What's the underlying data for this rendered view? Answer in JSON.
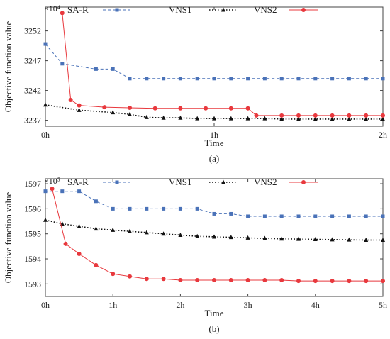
{
  "chart_data": [
    {
      "type": "line",
      "caption": "(a)",
      "xlabel": "Time",
      "ylabel": "Objective function value",
      "scale_label": "×10⁴",
      "xlim": [
        0,
        2
      ],
      "ylim": [
        3236,
        3256
      ],
      "x_ticks": [
        0,
        1,
        2
      ],
      "x_tick_labels": [
        "0h",
        "1h",
        "2h"
      ],
      "y_ticks": [
        3237,
        3242,
        3247,
        3252
      ],
      "y_tick_labels": [
        "3237",
        "3242",
        "3247",
        "3252"
      ],
      "legend_position": "top",
      "series": [
        {
          "name": "SA-R",
          "color": "#4a72b8",
          "line_style": "dashed",
          "marker": "square",
          "x": [
            0.0,
            0.1,
            0.3,
            0.4,
            0.5,
            0.6,
            0.7,
            0.8,
            0.9,
            1.0,
            1.1,
            1.2,
            1.3,
            1.4,
            1.5,
            1.6,
            1.7,
            1.8,
            1.9,
            2.0
          ],
          "y": [
            3249.8,
            3246.5,
            3245.6,
            3245.6,
            3244.0,
            3244.0,
            3244.0,
            3244.0,
            3244.0,
            3244.0,
            3244.0,
            3244.0,
            3244.0,
            3244.0,
            3244.0,
            3244.0,
            3244.0,
            3244.0,
            3244.0,
            3244.0
          ]
        },
        {
          "name": "VNS1",
          "color": "#111111",
          "line_style": "dotted",
          "marker": "triangle",
          "x": [
            0.0,
            0.2,
            0.4,
            0.5,
            0.6,
            0.7,
            0.8,
            0.9,
            1.0,
            1.1,
            1.2,
            1.3,
            1.4,
            1.5,
            1.6,
            1.7,
            1.8,
            1.9,
            2.0
          ],
          "y": [
            3239.6,
            3238.7,
            3238.3,
            3238.0,
            3237.5,
            3237.4,
            3237.4,
            3237.3,
            3237.3,
            3237.3,
            3237.3,
            3237.3,
            3237.2,
            3237.2,
            3237.2,
            3237.2,
            3237.2,
            3237.2,
            3237.2
          ]
        },
        {
          "name": "VNS2",
          "color": "#e8383d",
          "line_style": "solid",
          "marker": "circle",
          "x": [
            0.1,
            0.15,
            0.2,
            0.35,
            0.5,
            0.65,
            0.8,
            0.95,
            1.1,
            1.2,
            1.25,
            1.4,
            1.5,
            1.6,
            1.7,
            1.8,
            1.9,
            2.0
          ],
          "y": [
            3255.0,
            3240.4,
            3239.5,
            3239.2,
            3239.1,
            3239.0,
            3239.0,
            3239.0,
            3239.0,
            3239.0,
            3237.8,
            3237.8,
            3237.8,
            3237.8,
            3237.8,
            3237.8,
            3237.8,
            3237.8
          ]
        }
      ]
    },
    {
      "type": "line",
      "caption": "(b)",
      "xlabel": "Time",
      "ylabel": "Objective function value",
      "scale_label": "×10⁵",
      "xlim": [
        0,
        5
      ],
      "ylim": [
        1592.5,
        1597.2
      ],
      "x_ticks": [
        0,
        1,
        2,
        3,
        4,
        5
      ],
      "x_tick_labels": [
        "0h",
        "1h",
        "2h",
        "3h",
        "4h",
        "5h"
      ],
      "y_ticks": [
        1593,
        1594,
        1595,
        1596,
        1597
      ],
      "y_tick_labels": [
        "1593",
        "1594",
        "1595",
        "1596",
        "1597"
      ],
      "legend_position": "top",
      "series": [
        {
          "name": "SA-R",
          "color": "#4a72b8",
          "line_style": "dashed",
          "marker": "square",
          "x": [
            0.0,
            0.25,
            0.5,
            0.75,
            1.0,
            1.25,
            1.5,
            1.75,
            2.0,
            2.25,
            2.5,
            2.75,
            3.0,
            3.25,
            3.5,
            3.75,
            4.0,
            4.25,
            4.5,
            4.75,
            5.0
          ],
          "y": [
            1596.7,
            1596.7,
            1596.7,
            1596.3,
            1596.0,
            1596.0,
            1596.0,
            1596.0,
            1596.0,
            1596.0,
            1595.8,
            1595.8,
            1595.7,
            1595.7,
            1595.7,
            1595.7,
            1595.7,
            1595.7,
            1595.7,
            1595.7,
            1595.7
          ]
        },
        {
          "name": "VNS1",
          "color": "#111111",
          "line_style": "dotted",
          "marker": "triangle",
          "x": [
            0.0,
            0.25,
            0.5,
            0.75,
            1.0,
            1.25,
            1.5,
            1.75,
            2.0,
            2.25,
            2.5,
            2.75,
            3.0,
            3.25,
            3.5,
            3.75,
            4.0,
            4.25,
            4.5,
            4.75,
            5.0
          ],
          "y": [
            1595.55,
            1595.4,
            1595.3,
            1595.2,
            1595.15,
            1595.1,
            1595.05,
            1595.0,
            1594.95,
            1594.9,
            1594.88,
            1594.86,
            1594.84,
            1594.82,
            1594.8,
            1594.79,
            1594.78,
            1594.77,
            1594.76,
            1594.75,
            1594.75
          ]
        },
        {
          "name": "VNS2",
          "color": "#e8383d",
          "line_style": "solid",
          "marker": "circle",
          "x": [
            0.1,
            0.3,
            0.5,
            0.75,
            1.0,
            1.25,
            1.5,
            1.75,
            2.0,
            2.25,
            2.5,
            2.75,
            3.0,
            3.25,
            3.5,
            3.75,
            4.0,
            4.25,
            4.5,
            4.75,
            5.0
          ],
          "y": [
            1596.8,
            1594.6,
            1594.2,
            1593.75,
            1593.4,
            1593.3,
            1593.2,
            1593.2,
            1593.15,
            1593.15,
            1593.15,
            1593.15,
            1593.15,
            1593.15,
            1593.15,
            1593.12,
            1593.12,
            1593.12,
            1593.12,
            1593.12,
            1593.12
          ]
        }
      ]
    }
  ]
}
